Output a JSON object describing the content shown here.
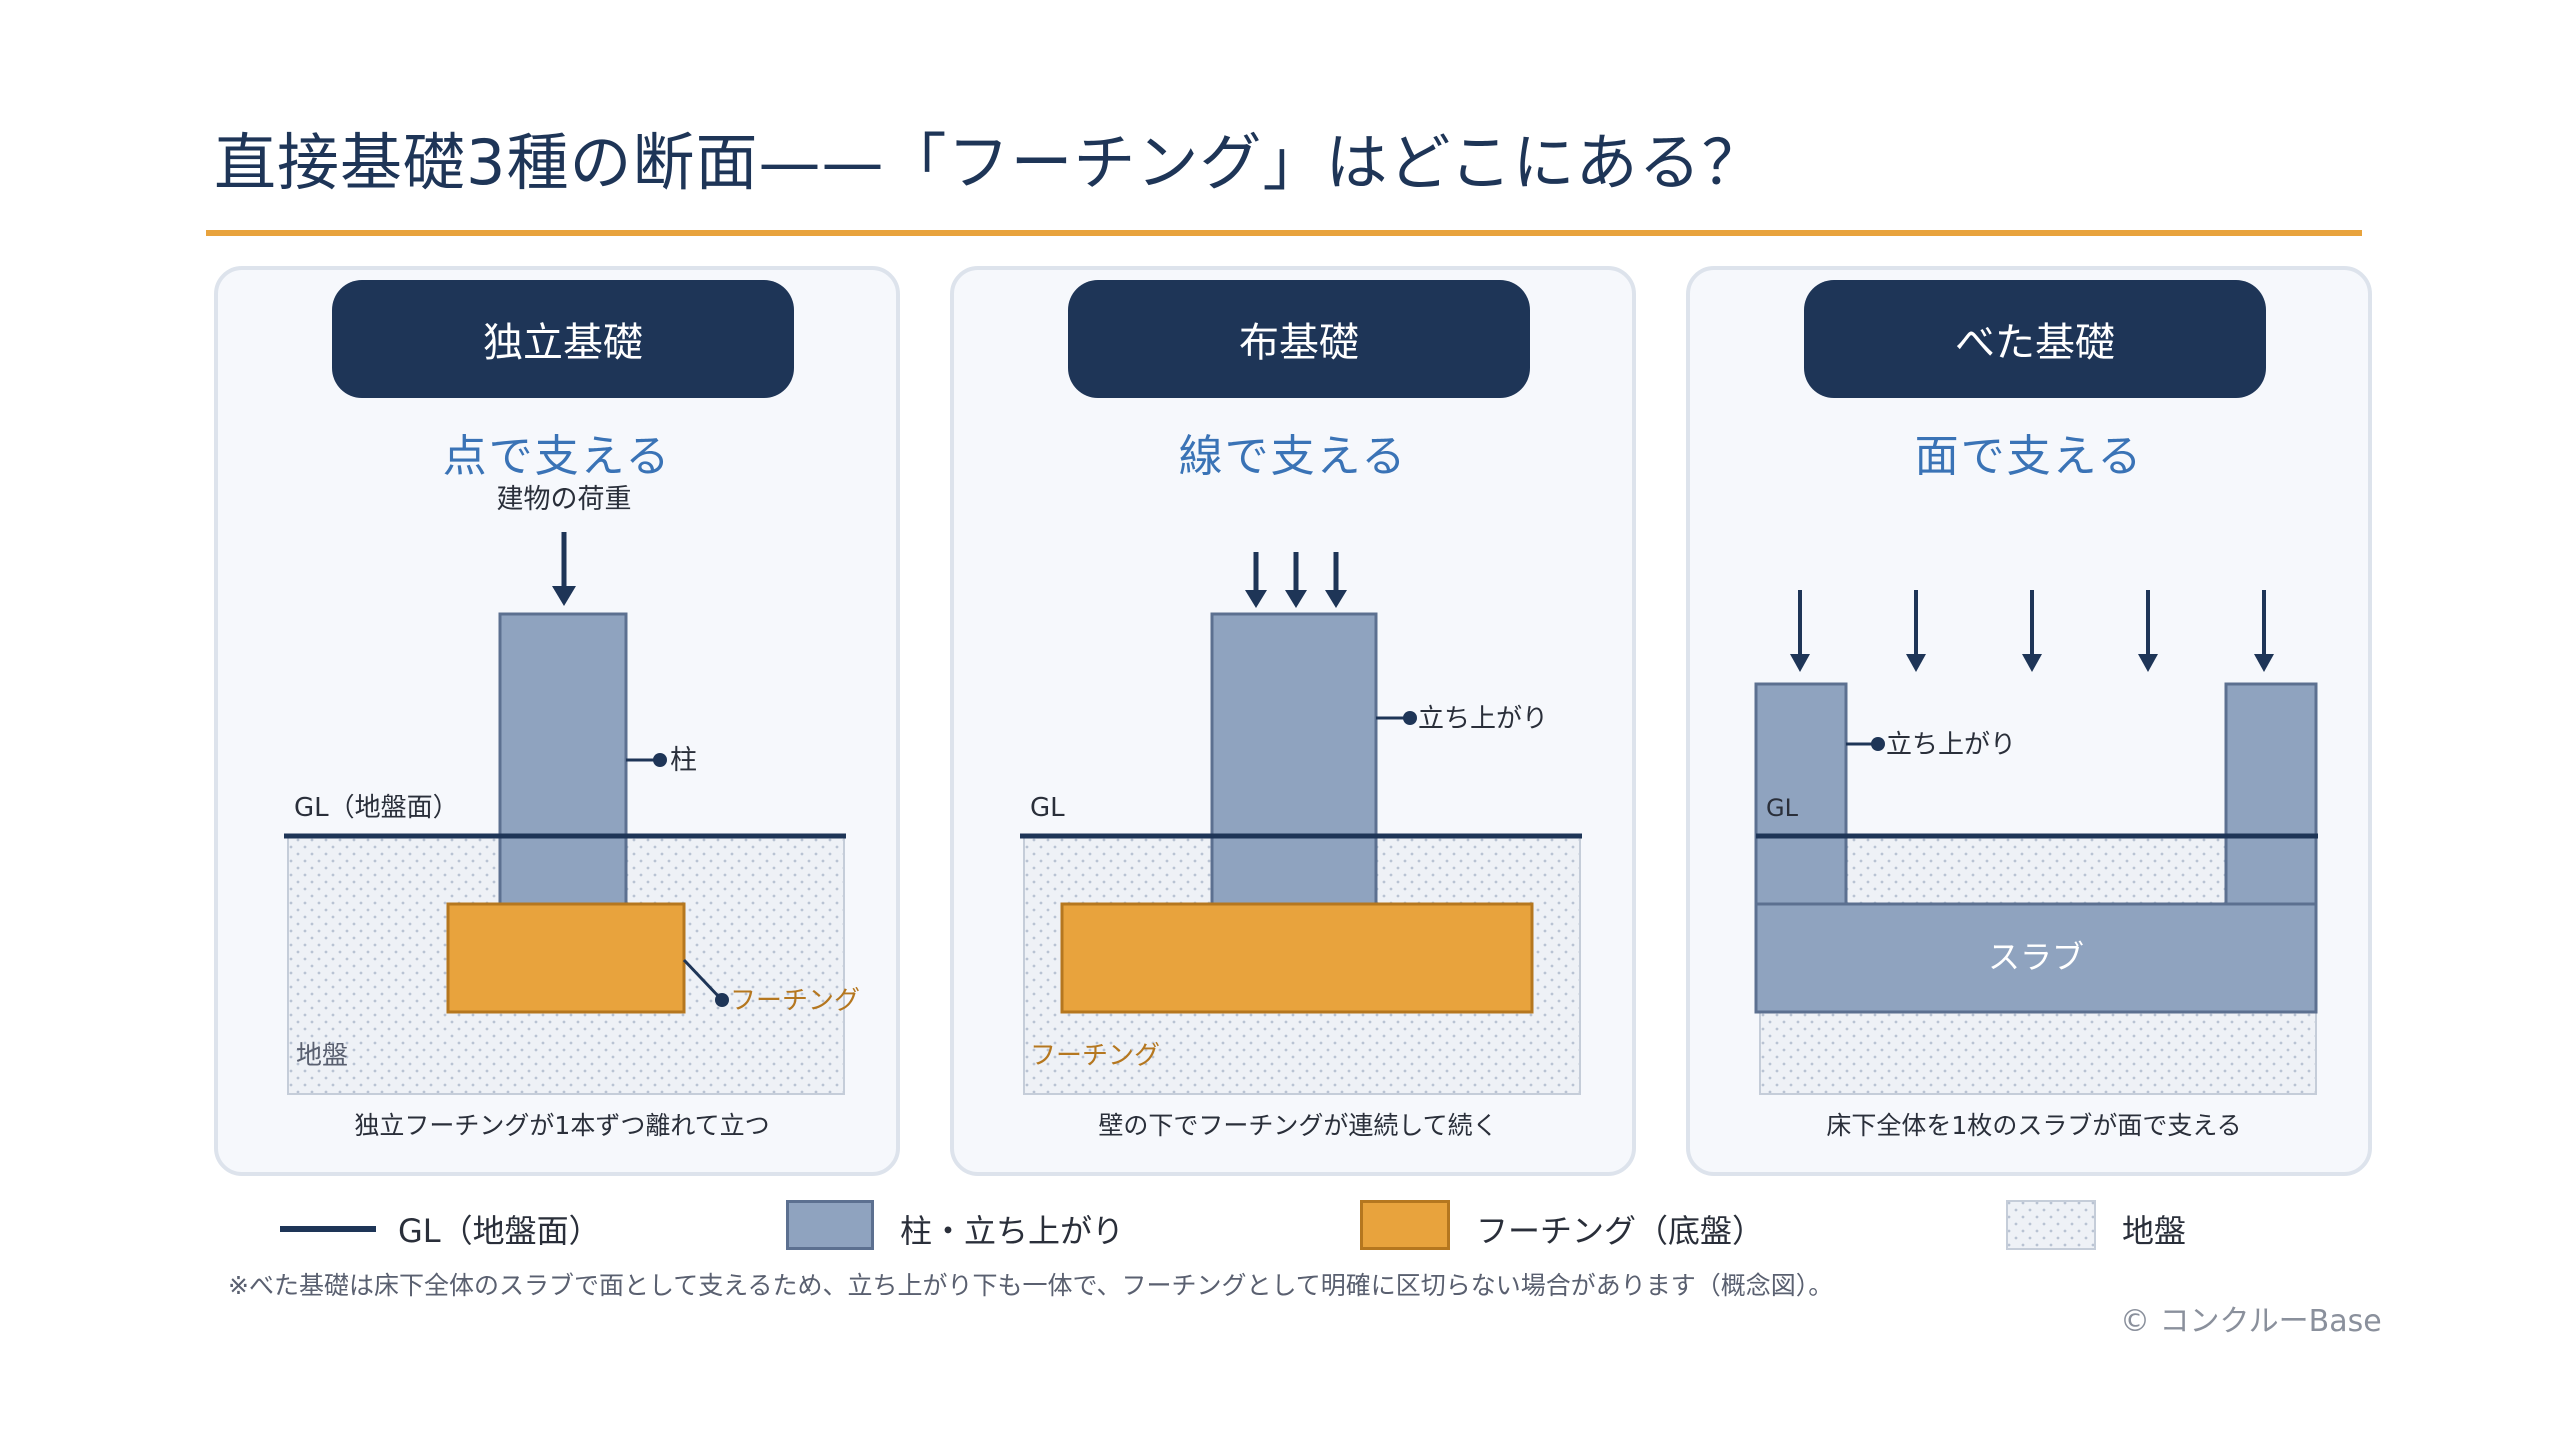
{
  "title": "直接基礎3種の断面——「フーチング」はどこにある？",
  "panels": [
    {
      "name": "独立基礎",
      "subtitle": "点で支える",
      "load_label": "建物の荷重",
      "column_label": "柱",
      "gl_label": "GL（地盤面）",
      "footing_label": "フーチング",
      "ground_label": "地盤",
      "caption": "独立フーチングが1本ずつ離れて立つ"
    },
    {
      "name": "布基礎",
      "subtitle": "線で支える",
      "riser_label": "立ち上がり",
      "gl_label": "GL",
      "footing_label": "フーチング",
      "caption": "壁の下でフーチングが連続して続く"
    },
    {
      "name": "べた基礎",
      "subtitle": "面で支える",
      "riser_label": "立ち上がり",
      "gl_label": "GL",
      "slab_label": "スラブ",
      "caption": "床下全体を1枚のスラブが面で支える"
    }
  ],
  "legend": [
    {
      "label": "GL（地盤面）",
      "icon": "gl-line-icon"
    },
    {
      "label": "柱・立ち上がり",
      "icon": "column-swatch-icon"
    },
    {
      "label": "フーチング（底盤）",
      "icon": "footing-swatch-icon"
    },
    {
      "label": "地盤",
      "icon": "ground-swatch-icon"
    }
  ],
  "note": "※べた基礎は床下全体のスラブで面として支えるため、立ち上がり下も一体で、フーチングとして明確に区切らない場合があります（概念図）。",
  "copyright": "© コンクルーBase",
  "colors": {
    "navy": "#1e3557",
    "accent": "#e8a33d",
    "column": "#8fa3bf",
    "footing": "#e8a33d",
    "ground": "#eef1f6",
    "subtitle": "#3a73b6"
  }
}
